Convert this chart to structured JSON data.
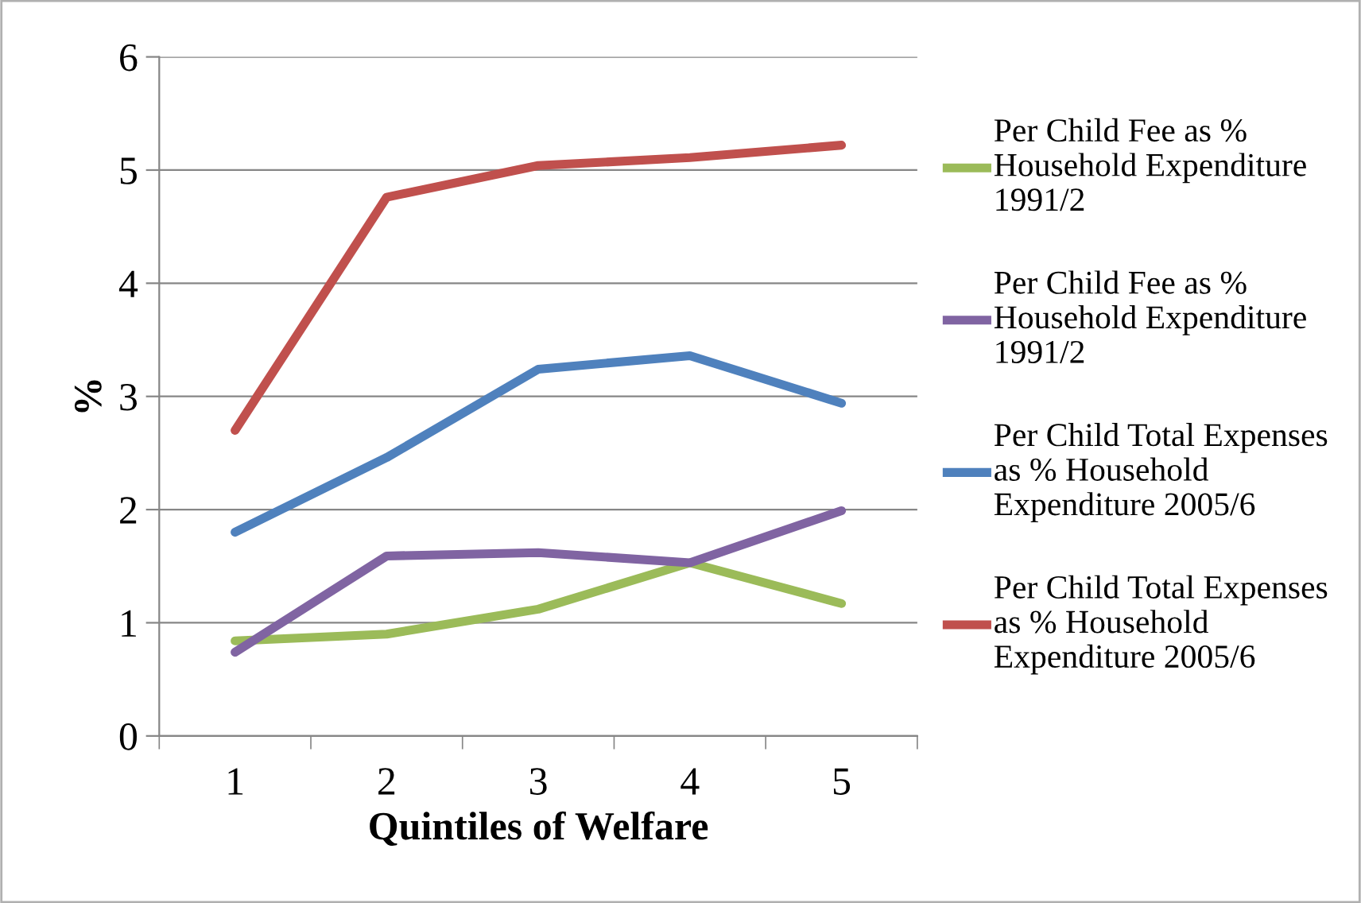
{
  "chart_data": {
    "type": "line",
    "xlabel": "Quintiles of Welfare",
    "ylabel": "%",
    "categories": [
      "1",
      "2",
      "3",
      "4",
      "5"
    ],
    "series": [
      {
        "name": "Per Child Fee as % Household Expenditure 1991/2",
        "color": "#9bbb59",
        "values": [
          0.84,
          0.9,
          1.12,
          1.53,
          1.17
        ]
      },
      {
        "name": "Per Child Fee as % Household Expenditure 1991/2",
        "color": "#8064a2",
        "values": [
          0.74,
          1.59,
          1.62,
          1.53,
          1.99
        ]
      },
      {
        "name": "Per Child Total Expenses as % Household Expenditure 2005/6",
        "color": "#4f81bd",
        "values": [
          1.8,
          2.46,
          3.24,
          3.36,
          2.94
        ]
      },
      {
        "name": "Per Child Total Expenses as % Household Expenditure 2005/6",
        "color": "#c0504d",
        "values": [
          2.7,
          4.76,
          5.04,
          5.11,
          5.22
        ]
      }
    ],
    "ylim": [
      0,
      6
    ],
    "yticks": [
      0,
      1,
      2,
      3,
      4,
      5,
      6
    ],
    "grid": "y",
    "legend": "right",
    "marker": "none",
    "line_style": "solid"
  }
}
